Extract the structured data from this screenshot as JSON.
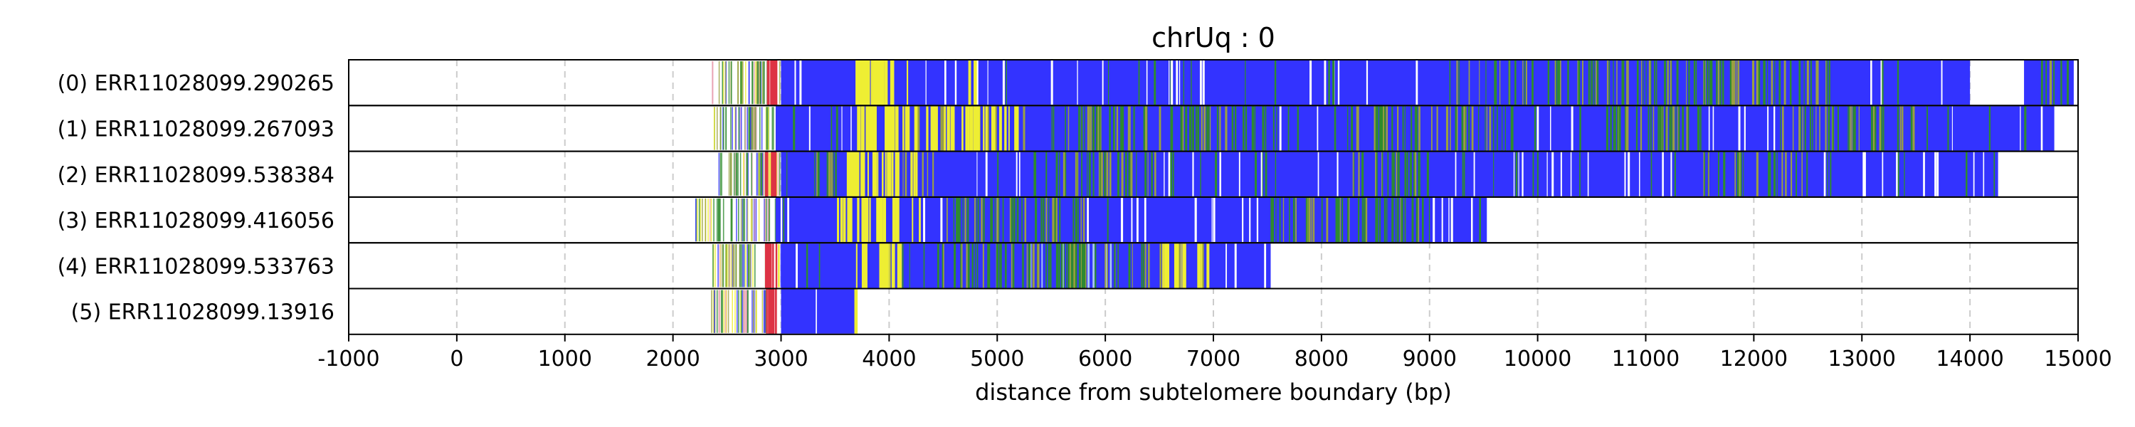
{
  "chart_data": {
    "type": "read-alignment track plot",
    "title": "chrUq : 0",
    "xlabel": "distance from subtelomere boundary (bp)",
    "ylabel": "",
    "xlim": [
      -1000,
      15000
    ],
    "xticks": [
      -1000,
      0,
      1000,
      2000,
      3000,
      4000,
      5000,
      6000,
      7000,
      8000,
      9000,
      10000,
      11000,
      12000,
      13000,
      14000,
      15000
    ],
    "grid": "vertical dashed",
    "colors": {
      "primary": "#3333ff",
      "secondary_green": "#2e8b2e",
      "yellow": "#eeee33",
      "light_blue": "#a8c8f0",
      "red": "#dd3344",
      "pink": "#e8a0b0",
      "olive": "#9aa040",
      "grid": "#cccccc"
    },
    "reads": [
      {
        "label": "(0) ERR11028099.290265",
        "start": 2350,
        "solid_from": 3000,
        "end": 15000,
        "blocks": [
          [
            3000,
            14000
          ],
          [
            14500,
            14960
          ]
        ],
        "green_zones": [
          [
            9000,
            12700
          ],
          [
            14550,
            14900
          ]
        ],
        "yellow_zones": [
          [
            3650,
            4200
          ],
          [
            4700,
            4800
          ]
        ],
        "lightblue_zones": [],
        "red_zones": [
          [
            2850,
            2950
          ]
        ]
      },
      {
        "label": "(1) ERR11028099.267093",
        "start": 2320,
        "solid_from": 2950,
        "end": 14780,
        "blocks": [
          [
            2950,
            14780
          ]
        ],
        "green_zones": [
          [
            3700,
            5300
          ],
          [
            5500,
            7500
          ],
          [
            8000,
            9800
          ],
          [
            10600,
            11500
          ],
          [
            12200,
            13500
          ]
        ],
        "yellow_zones": [
          [
            3700,
            5300
          ]
        ],
        "lightblue_zones": [
          [
            5500,
            6500
          ]
        ],
        "red_zones": []
      },
      {
        "label": "(2) ERR11028099.538384",
        "start": 2400,
        "solid_from": 3000,
        "end": 14260,
        "blocks": [
          [
            3000,
            14260
          ]
        ],
        "green_zones": [
          [
            3300,
            4500
          ],
          [
            5300,
            6500
          ],
          [
            8200,
            9000
          ],
          [
            11500,
            12500
          ]
        ],
        "yellow_zones": [
          [
            3500,
            4300
          ]
        ],
        "lightblue_zones": [],
        "red_zones": [
          [
            2850,
            2950
          ]
        ]
      },
      {
        "label": "(3) ERR11028099.416056",
        "start": 2200,
        "solid_from": 2950,
        "end": 9530,
        "blocks": [
          [
            2950,
            9530
          ]
        ],
        "green_zones": [
          [
            4500,
            5800
          ],
          [
            7500,
            9000
          ]
        ],
        "yellow_zones": [
          [
            3500,
            4300
          ]
        ],
        "lightblue_zones": [],
        "red_zones": []
      },
      {
        "label": "(4) ERR11028099.533763",
        "start": 2350,
        "solid_from": 3000,
        "end": 7530,
        "blocks": [
          [
            3000,
            7530
          ]
        ],
        "green_zones": [
          [
            4000,
            7000
          ]
        ],
        "yellow_zones": [
          [
            3600,
            4100
          ],
          [
            6500,
            6950
          ]
        ],
        "lightblue_zones": [
          [
            5000,
            6200
          ]
        ],
        "red_zones": [
          [
            2850,
            2950
          ]
        ]
      },
      {
        "label": "(5) ERR11028099.13916",
        "start": 2350,
        "solid_from": 3000,
        "end": 3680,
        "blocks": [
          [
            3000,
            3680
          ]
        ],
        "green_zones": [],
        "yellow_zones": [
          [
            3640,
            3680
          ]
        ],
        "lightblue_zones": [],
        "red_zones": [
          [
            2850,
            2960
          ]
        ]
      }
    ]
  }
}
